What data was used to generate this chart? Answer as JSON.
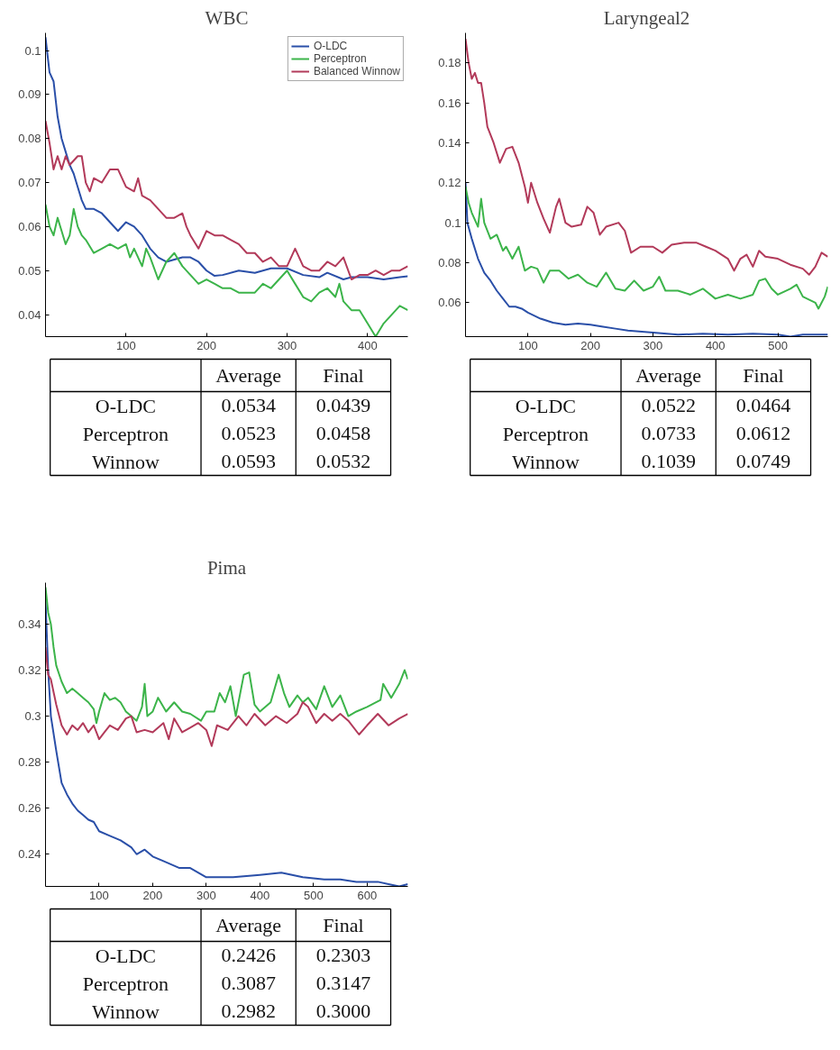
{
  "chart_data": [
    {
      "type": "line",
      "title": "WBC",
      "xlim": [
        0,
        450
      ],
      "ylim": [
        0.035,
        0.104
      ],
      "xticks": [
        100,
        200,
        300,
        400
      ],
      "yticks": [
        0.04,
        0.05,
        0.06,
        0.07,
        0.08,
        0.09,
        0.1
      ],
      "grid": false,
      "legend": "top right",
      "series": [
        {
          "name": "O-LDC",
          "color": "#2a4fa8",
          "x": [
            0,
            5,
            10,
            15,
            20,
            25,
            30,
            35,
            40,
            45,
            50,
            60,
            70,
            80,
            90,
            100,
            110,
            120,
            130,
            140,
            150,
            160,
            170,
            180,
            190,
            200,
            210,
            220,
            240,
            260,
            280,
            300,
            320,
            340,
            350,
            370,
            380,
            400,
            420,
            440,
            450
          ],
          "values": [
            0.103,
            0.095,
            0.093,
            0.085,
            0.08,
            0.077,
            0.074,
            0.072,
            0.069,
            0.066,
            0.064,
            0.064,
            0.063,
            0.061,
            0.059,
            0.061,
            0.06,
            0.058,
            0.055,
            0.053,
            0.052,
            0.0525,
            0.053,
            0.053,
            0.052,
            0.05,
            0.0488,
            0.049,
            0.05,
            0.0495,
            0.0505,
            0.0505,
            0.049,
            0.0485,
            0.0495,
            0.048,
            0.0485,
            0.0485,
            0.048,
            0.0485,
            0.0487
          ]
        },
        {
          "name": "Perceptron",
          "color": "#3cb44a",
          "x": [
            0,
            5,
            10,
            15,
            20,
            25,
            30,
            35,
            40,
            45,
            50,
            60,
            70,
            80,
            90,
            100,
            105,
            110,
            120,
            125,
            130,
            140,
            150,
            160,
            170,
            180,
            190,
            200,
            210,
            220,
            230,
            240,
            250,
            260,
            270,
            280,
            290,
            300,
            310,
            320,
            330,
            340,
            350,
            360,
            365,
            370,
            380,
            390,
            400,
            410,
            420,
            430,
            440,
            450
          ],
          "values": [
            0.065,
            0.06,
            0.058,
            0.062,
            0.059,
            0.056,
            0.058,
            0.064,
            0.06,
            0.058,
            0.057,
            0.054,
            0.055,
            0.056,
            0.055,
            0.056,
            0.053,
            0.055,
            0.051,
            0.055,
            0.053,
            0.048,
            0.052,
            0.054,
            0.051,
            0.049,
            0.047,
            0.048,
            0.047,
            0.046,
            0.046,
            0.045,
            0.045,
            0.045,
            0.047,
            0.046,
            0.048,
            0.05,
            0.047,
            0.044,
            0.043,
            0.045,
            0.046,
            0.044,
            0.047,
            0.043,
            0.041,
            0.041,
            0.038,
            0.035,
            0.038,
            0.04,
            0.042,
            0.041
          ]
        },
        {
          "name": "Balanced Winnow",
          "color": "#b23a5a",
          "x": [
            0,
            5,
            10,
            15,
            20,
            25,
            30,
            40,
            45,
            50,
            55,
            60,
            70,
            80,
            90,
            100,
            110,
            115,
            120,
            130,
            140,
            150,
            160,
            170,
            175,
            180,
            190,
            200,
            210,
            220,
            230,
            240,
            250,
            260,
            270,
            280,
            290,
            300,
            310,
            320,
            330,
            340,
            350,
            360,
            370,
            380,
            390,
            400,
            410,
            420,
            430,
            440,
            450
          ],
          "values": [
            0.084,
            0.079,
            0.073,
            0.076,
            0.073,
            0.076,
            0.074,
            0.076,
            0.076,
            0.07,
            0.068,
            0.071,
            0.07,
            0.073,
            0.073,
            0.069,
            0.068,
            0.071,
            0.067,
            0.066,
            0.064,
            0.062,
            0.062,
            0.063,
            0.06,
            0.058,
            0.055,
            0.059,
            0.058,
            0.058,
            0.057,
            0.056,
            0.054,
            0.054,
            0.052,
            0.053,
            0.051,
            0.051,
            0.055,
            0.051,
            0.05,
            0.05,
            0.052,
            0.051,
            0.053,
            0.048,
            0.049,
            0.049,
            0.05,
            0.049,
            0.05,
            0.05,
            0.051
          ]
        }
      ]
    },
    {
      "type": "other",
      "categories": [
        "Average",
        "Final"
      ],
      "y_categories": [
        "O-LDC",
        "Perceptron",
        "Winnow"
      ],
      "cell_labels": [
        [
          "0.0534",
          "0.0439"
        ],
        [
          "0.0523",
          "0.0458"
        ],
        [
          "0.0593",
          "0.0532"
        ]
      ]
    },
    {
      "type": "line",
      "title": "Laryngeal2",
      "xlim": [
        0,
        580
      ],
      "ylim": [
        0.043,
        0.195
      ],
      "xticks": [
        100,
        200,
        300,
        400,
        500
      ],
      "yticks": [
        0.06,
        0.08,
        0.1,
        0.12,
        0.14,
        0.16,
        0.18
      ],
      "grid": false,
      "series": [
        {
          "color": "#2a4fa8",
          "x": [
            0,
            3,
            10,
            20,
            30,
            40,
            50,
            60,
            70,
            80,
            90,
            100,
            120,
            140,
            160,
            180,
            200,
            220,
            240,
            260,
            300,
            340,
            380,
            420,
            460,
            500,
            520,
            540,
            580
          ],
          "values": [
            0.12,
            0.1,
            0.092,
            0.082,
            0.075,
            0.071,
            0.066,
            0.062,
            0.058,
            0.058,
            0.057,
            0.055,
            0.052,
            0.05,
            0.049,
            0.0495,
            0.049,
            0.048,
            0.047,
            0.046,
            0.045,
            0.044,
            0.0445,
            0.044,
            0.0445,
            0.044,
            0.043,
            0.044,
            0.044
          ]
        },
        {
          "color": "#3cb44a",
          "x": [
            0,
            5,
            10,
            20,
            25,
            30,
            40,
            50,
            60,
            65,
            75,
            85,
            95,
            105,
            115,
            125,
            135,
            150,
            165,
            180,
            195,
            210,
            225,
            240,
            255,
            270,
            285,
            300,
            310,
            320,
            340,
            360,
            380,
            400,
            420,
            440,
            460,
            470,
            480,
            490,
            500,
            520,
            530,
            540,
            560,
            565,
            575,
            580
          ],
          "values": [
            0.118,
            0.11,
            0.105,
            0.098,
            0.112,
            0.1,
            0.092,
            0.094,
            0.086,
            0.088,
            0.082,
            0.088,
            0.076,
            0.078,
            0.077,
            0.07,
            0.076,
            0.076,
            0.072,
            0.074,
            0.07,
            0.068,
            0.075,
            0.067,
            0.066,
            0.071,
            0.066,
            0.068,
            0.073,
            0.066,
            0.066,
            0.064,
            0.067,
            0.062,
            0.064,
            0.062,
            0.064,
            0.071,
            0.072,
            0.067,
            0.064,
            0.067,
            0.069,
            0.063,
            0.06,
            0.057,
            0.063,
            0.068
          ]
        },
        {
          "color": "#b23a5a",
          "x": [
            0,
            5,
            10,
            15,
            20,
            25,
            30,
            35,
            45,
            55,
            65,
            75,
            85,
            95,
            100,
            105,
            115,
            125,
            135,
            145,
            150,
            160,
            170,
            185,
            195,
            205,
            215,
            225,
            245,
            255,
            265,
            280,
            300,
            315,
            330,
            350,
            370,
            385,
            400,
            420,
            430,
            440,
            450,
            460,
            470,
            480,
            500,
            520,
            540,
            550,
            560,
            570,
            580
          ],
          "values": [
            0.192,
            0.18,
            0.172,
            0.175,
            0.17,
            0.17,
            0.16,
            0.148,
            0.14,
            0.13,
            0.137,
            0.138,
            0.13,
            0.118,
            0.11,
            0.12,
            0.11,
            0.102,
            0.095,
            0.108,
            0.112,
            0.1,
            0.098,
            0.099,
            0.108,
            0.105,
            0.094,
            0.098,
            0.1,
            0.096,
            0.085,
            0.088,
            0.088,
            0.085,
            0.089,
            0.09,
            0.09,
            0.088,
            0.086,
            0.082,
            0.076,
            0.082,
            0.084,
            0.078,
            0.086,
            0.083,
            0.082,
            0.079,
            0.077,
            0.074,
            0.078,
            0.085,
            0.083
          ]
        }
      ]
    },
    {
      "type": "other",
      "categories": [
        "Average",
        "Final"
      ],
      "y_categories": [
        "O-LDC",
        "Perceptron",
        "Winnow"
      ],
      "cell_labels": [
        [
          "0.0522",
          "0.0464"
        ],
        [
          "0.0733",
          "0.0612"
        ],
        [
          "0.1039",
          "0.0749"
        ]
      ]
    },
    {
      "type": "line",
      "title": "Pima",
      "xlim": [
        0,
        676
      ],
      "ylim": [
        0.226,
        0.358
      ],
      "xticks": [
        100,
        200,
        300,
        400,
        500,
        600
      ],
      "yticks": [
        0.24,
        0.26,
        0.28,
        0.3,
        0.32,
        0.34
      ],
      "grid": false,
      "series": [
        {
          "color": "#2a4fa8",
          "x": [
            0,
            5,
            10,
            20,
            30,
            40,
            50,
            60,
            70,
            80,
            90,
            100,
            120,
            140,
            160,
            170,
            185,
            200,
            220,
            250,
            270,
            300,
            320,
            350,
            400,
            440,
            480,
            520,
            550,
            580,
            620,
            640,
            660,
            676
          ],
          "values": [
            0.35,
            0.32,
            0.3,
            0.285,
            0.271,
            0.266,
            0.262,
            0.259,
            0.257,
            0.255,
            0.254,
            0.25,
            0.248,
            0.246,
            0.243,
            0.24,
            0.242,
            0.239,
            0.237,
            0.234,
            0.234,
            0.23,
            0.23,
            0.23,
            0.231,
            0.232,
            0.23,
            0.229,
            0.229,
            0.228,
            0.228,
            0.227,
            0.226,
            0.227
          ]
        },
        {
          "color": "#3cb44a",
          "x": [
            0,
            5,
            10,
            15,
            20,
            30,
            40,
            50,
            60,
            70,
            80,
            90,
            95,
            100,
            110,
            120,
            130,
            140,
            150,
            160,
            170,
            180,
            185,
            190,
            200,
            210,
            225,
            240,
            255,
            270,
            290,
            300,
            315,
            325,
            335,
            345,
            355,
            370,
            380,
            390,
            400,
            420,
            435,
            445,
            455,
            470,
            480,
            490,
            505,
            520,
            535,
            550,
            565,
            580,
            600,
            625,
            630,
            645,
            660,
            670,
            676
          ],
          "values": [
            0.356,
            0.345,
            0.34,
            0.33,
            0.322,
            0.315,
            0.31,
            0.312,
            0.31,
            0.308,
            0.306,
            0.303,
            0.297,
            0.302,
            0.31,
            0.307,
            0.308,
            0.306,
            0.302,
            0.3,
            0.298,
            0.304,
            0.314,
            0.3,
            0.302,
            0.308,
            0.302,
            0.306,
            0.302,
            0.301,
            0.298,
            0.302,
            0.302,
            0.31,
            0.306,
            0.313,
            0.3,
            0.318,
            0.319,
            0.305,
            0.302,
            0.306,
            0.318,
            0.31,
            0.304,
            0.309,
            0.306,
            0.308,
            0.303,
            0.313,
            0.304,
            0.309,
            0.3,
            0.302,
            0.304,
            0.307,
            0.314,
            0.308,
            0.314,
            0.32,
            0.316
          ]
        },
        {
          "color": "#b23a5a",
          "x": [
            0,
            5,
            10,
            20,
            30,
            40,
            50,
            60,
            70,
            80,
            90,
            100,
            110,
            120,
            135,
            150,
            160,
            170,
            185,
            200,
            220,
            230,
            240,
            255,
            270,
            285,
            300,
            310,
            320,
            340,
            360,
            375,
            390,
            410,
            430,
            450,
            470,
            480,
            490,
            505,
            520,
            535,
            550,
            565,
            585,
            600,
            620,
            640,
            660,
            676
          ],
          "values": [
            0.33,
            0.318,
            0.316,
            0.305,
            0.296,
            0.292,
            0.296,
            0.294,
            0.297,
            0.293,
            0.296,
            0.29,
            0.293,
            0.296,
            0.294,
            0.299,
            0.3,
            0.293,
            0.294,
            0.293,
            0.297,
            0.29,
            0.299,
            0.293,
            0.295,
            0.297,
            0.294,
            0.287,
            0.296,
            0.294,
            0.3,
            0.296,
            0.301,
            0.296,
            0.3,
            0.297,
            0.301,
            0.306,
            0.304,
            0.297,
            0.301,
            0.298,
            0.301,
            0.298,
            0.292,
            0.296,
            0.301,
            0.296,
            0.299,
            0.301
          ]
        }
      ]
    },
    {
      "type": "other",
      "categories": [
        "Average",
        "Final"
      ],
      "y_categories": [
        "O-LDC",
        "Perceptron",
        "Winnow"
      ],
      "cell_labels": [
        [
          "0.2426",
          "0.2303"
        ],
        [
          "0.3087",
          "0.3147"
        ],
        [
          "0.2982",
          "0.3000"
        ]
      ]
    }
  ]
}
